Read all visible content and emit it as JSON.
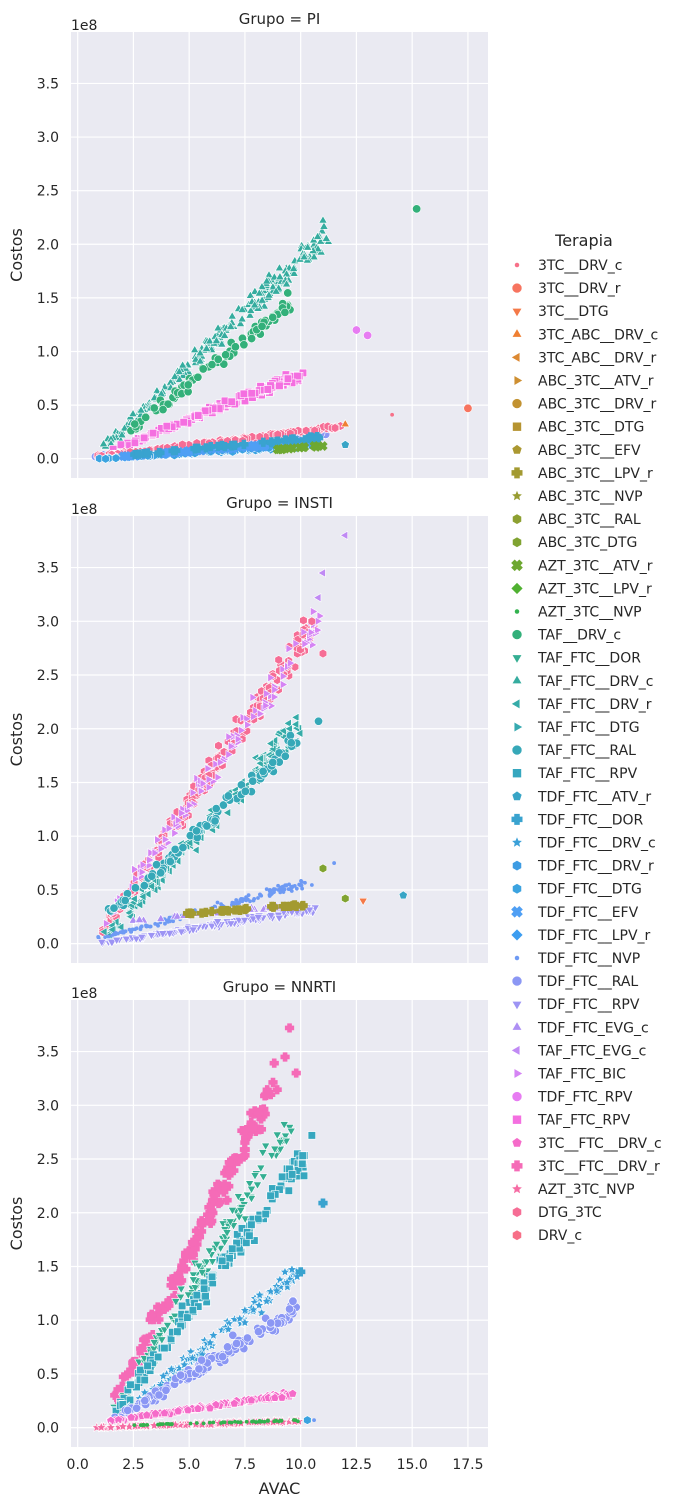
{
  "chart_data": {
    "type": "scatter",
    "x_label": "AVAC",
    "y_label": "Costos",
    "offset_text": "1e8",
    "xlim": [
      -0.3,
      18.4
    ],
    "ylim": [
      -0.18,
      3.98
    ],
    "x_ticks": [
      0.0,
      2.5,
      5.0,
      7.5,
      10.0,
      12.5,
      15.0,
      17.5
    ],
    "x_tick_labels": [
      "0.0",
      "2.5",
      "5.0",
      "7.5",
      "10.0",
      "12.5",
      "15.0",
      "17.5"
    ],
    "y_ticks": [
      0.0,
      0.5,
      1.0,
      1.5,
      2.0,
      2.5,
      3.0,
      3.5
    ],
    "y_tick_labels": [
      "0.0",
      "0.5",
      "1.0",
      "1.5",
      "2.0",
      "2.5",
      "3.0",
      "3.5"
    ],
    "grid": true,
    "legend_placement": "right",
    "legend_title": "Terapia",
    "panels": [
      {
        "title": "Grupo = PI",
        "clouds": [
          {
            "series": 18,
            "x0": 1.3,
            "x1": 11.2,
            "y0": 0.12,
            "y1": 2.1,
            "n": 230,
            "spread": 0.11
          },
          {
            "series": 16,
            "x0": 2.2,
            "x1": 9.6,
            "y0": 0.25,
            "y1": 1.45,
            "n": 90,
            "spread": 0.08
          },
          {
            "series": 37,
            "x0": 1.5,
            "x1": 10.0,
            "y0": 0.08,
            "y1": 0.78,
            "n": 150,
            "spread": 0.05
          },
          {
            "series": 31,
            "x0": 0.8,
            "x1": 11.0,
            "y0": 0.02,
            "y1": 0.24,
            "n": 140,
            "spread": 0.025
          },
          {
            "series": 41,
            "x0": 0.8,
            "x1": 11.8,
            "y0": 0.02,
            "y1": 0.3,
            "n": 110,
            "spread": 0.02
          },
          {
            "series": 27,
            "x0": 1.0,
            "x1": 10.5,
            "y0": 0.0,
            "y1": 0.12,
            "n": 90,
            "spread": 0.015
          },
          {
            "series": 28,
            "x0": 2.0,
            "x1": 10.5,
            "y0": 0.02,
            "y1": 0.16,
            "n": 60,
            "spread": 0.015
          },
          {
            "series": 24,
            "x0": 2.0,
            "x1": 11.0,
            "y0": 0.03,
            "y1": 0.2,
            "n": 40,
            "spread": 0.015
          },
          {
            "series": 13,
            "x0": 8.5,
            "x1": 11.0,
            "y0": 0.08,
            "y1": 0.12,
            "n": 12,
            "spread": 0.01
          }
        ],
        "points": [
          {
            "series": 16,
            "x": 15.2,
            "y": 2.33
          },
          {
            "series": 36,
            "x": 12.5,
            "y": 1.2
          },
          {
            "series": 36,
            "x": 13.0,
            "y": 1.15
          },
          {
            "series": 1,
            "x": 17.5,
            "y": 0.47
          },
          {
            "series": 0,
            "x": 14.1,
            "y": 0.41
          },
          {
            "series": 3,
            "x": 12.0,
            "y": 0.32
          },
          {
            "series": 23,
            "x": 12.0,
            "y": 0.13
          },
          {
            "series": 18,
            "x": 11.0,
            "y": 2.22
          }
        ]
      },
      {
        "title": "Grupo = INSTI",
        "clouds": [
          {
            "series": 41,
            "x0": 1.0,
            "x1": 10.5,
            "y0": 0.1,
            "y1": 2.95,
            "n": 220,
            "spread": 0.15
          },
          {
            "series": 35,
            "x0": 1.2,
            "x1": 10.8,
            "y0": 0.2,
            "y1": 3.0,
            "n": 110,
            "spread": 0.18
          },
          {
            "series": 19,
            "x0": 1.2,
            "x1": 10.0,
            "y0": 0.05,
            "y1": 2.05,
            "n": 160,
            "spread": 0.15
          },
          {
            "series": 21,
            "x0": 1.6,
            "x1": 9.8,
            "y0": 0.3,
            "y1": 1.9,
            "n": 90,
            "spread": 0.1
          },
          {
            "series": 30,
            "x0": 1.0,
            "x1": 10.5,
            "y0": 0.05,
            "y1": 0.58,
            "n": 160,
            "spread": 0.05
          },
          {
            "series": 32,
            "x0": 0.8,
            "x1": 10.5,
            "y0": 0.0,
            "y1": 0.32,
            "n": 150,
            "spread": 0.03
          },
          {
            "series": 33,
            "x0": 2.0,
            "x1": 10.0,
            "y0": 0.2,
            "y1": 0.36,
            "n": 40,
            "spread": 0.02
          },
          {
            "series": 9,
            "x0": 5.0,
            "x1": 10.0,
            "y0": 0.28,
            "y1": 0.36,
            "n": 30,
            "spread": 0.02
          }
        ],
        "points": [
          {
            "series": 34,
            "x": 12.0,
            "y": 3.8
          },
          {
            "series": 34,
            "x": 11.0,
            "y": 3.45
          },
          {
            "series": 34,
            "x": 10.8,
            "y": 3.22
          },
          {
            "series": 41,
            "x": 10.5,
            "y": 3.0
          },
          {
            "series": 41,
            "x": 11.0,
            "y": 2.7
          },
          {
            "series": 30,
            "x": 11.5,
            "y": 0.75
          },
          {
            "series": 12,
            "x": 11.0,
            "y": 0.7
          },
          {
            "series": 12,
            "x": 12.0,
            "y": 0.42
          },
          {
            "series": 2,
            "x": 12.8,
            "y": 0.4
          },
          {
            "series": 23,
            "x": 14.6,
            "y": 0.45
          },
          {
            "series": 21,
            "x": 10.8,
            "y": 2.07
          }
        ]
      },
      {
        "title": "Grupo = NNRTI",
        "clouds": [
          {
            "series": 39,
            "x0": 1.5,
            "x1": 9.0,
            "y0": 0.15,
            "y1": 3.3,
            "n": 170,
            "spread": 0.18
          },
          {
            "series": 17,
            "x0": 1.5,
            "x1": 9.5,
            "y0": 0.1,
            "y1": 2.8,
            "n": 130,
            "spread": 0.16
          },
          {
            "series": 22,
            "x0": 1.5,
            "x1": 10.2,
            "y0": 0.1,
            "y1": 2.55,
            "n": 150,
            "spread": 0.16
          },
          {
            "series": 25,
            "x0": 2.0,
            "x1": 10.0,
            "y0": 0.1,
            "y1": 1.5,
            "n": 110,
            "spread": 0.1
          },
          {
            "series": 31,
            "x0": 1.5,
            "x1": 9.8,
            "y0": 0.05,
            "y1": 1.1,
            "n": 140,
            "spread": 0.1
          },
          {
            "series": 38,
            "x0": 1.5,
            "x1": 9.5,
            "y0": 0.06,
            "y1": 0.31,
            "n": 150,
            "spread": 0.02
          },
          {
            "series": 40,
            "x0": 0.8,
            "x1": 10.0,
            "y0": 0.0,
            "y1": 0.06,
            "n": 130,
            "spread": 0.01
          },
          {
            "series": 15,
            "x0": 2.0,
            "x1": 10.0,
            "y0": 0.02,
            "y1": 0.07,
            "n": 50,
            "spread": 0.01
          }
        ],
        "points": [
          {
            "series": 39,
            "x": 9.5,
            "y": 3.72
          },
          {
            "series": 39,
            "x": 9.3,
            "y": 3.45
          },
          {
            "series": 39,
            "x": 9.8,
            "y": 3.3
          },
          {
            "series": 22,
            "x": 10.5,
            "y": 2.72
          },
          {
            "series": 24,
            "x": 11.0,
            "y": 2.09
          },
          {
            "series": 24,
            "x": 10.0,
            "y": 1.45
          },
          {
            "series": 27,
            "x": 10.3,
            "y": 0.07
          },
          {
            "series": 30,
            "x": 10.6,
            "y": 0.07
          }
        ]
      }
    ],
    "series": [
      {
        "name": "3TC__DRV_c",
        "color": "#f77189",
        "marker": "point"
      },
      {
        "name": "3TC__DRV_r",
        "color": "#f7745f",
        "marker": "circle"
      },
      {
        "name": "3TC__DTG",
        "color": "#f47948",
        "marker": "tri-down"
      },
      {
        "name": "3TC_ABC__DRV_c",
        "color": "#ef7f32",
        "marker": "tri-up"
      },
      {
        "name": "3TC_ABC__DRV_r",
        "color": "#dc8932",
        "marker": "tri-left"
      },
      {
        "name": "ABC_3TC__ATV_r",
        "color": "#ce8f31",
        "marker": "tri-right"
      },
      {
        "name": "ABC_3TC__DRV_r",
        "color": "#c29231",
        "marker": "circle"
      },
      {
        "name": "ABC_3TC__DTG",
        "color": "#b69431",
        "marker": "square"
      },
      {
        "name": "ABC_3TC__EFV",
        "color": "#ab9831",
        "marker": "pentagon"
      },
      {
        "name": "ABC_3TC__LPV_r",
        "color": "#a39a31",
        "marker": "plus"
      },
      {
        "name": "ABC_3TC__NVP",
        "color": "#989c31",
        "marker": "star"
      },
      {
        "name": "ABC_3TC__RAL",
        "color": "#8da031",
        "marker": "hexagon"
      },
      {
        "name": "ABC_3TC_DTG",
        "color": "#80a331",
        "marker": "hexagon"
      },
      {
        "name": "AZT_3TC__ATV_r",
        "color": "#6ea831",
        "marker": "x"
      },
      {
        "name": "AZT_3TC__LPV_r",
        "color": "#50b131",
        "marker": "diamond"
      },
      {
        "name": "AZT_3TC__NVP",
        "color": "#32b24e",
        "marker": "point"
      },
      {
        "name": "TAF__DRV_c",
        "color": "#33b07a",
        "marker": "circle"
      },
      {
        "name": "TAF_FTC__DOR",
        "color": "#34ae92",
        "marker": "tri-down"
      },
      {
        "name": "TAF_FTC__DRV_c",
        "color": "#35ac9f",
        "marker": "tri-up"
      },
      {
        "name": "TAF_FTC__DRV_r",
        "color": "#35aba8",
        "marker": "tri-left"
      },
      {
        "name": "TAF_FTC__DTG",
        "color": "#36aab0",
        "marker": "tri-right"
      },
      {
        "name": "TAF_FTC__RAL",
        "color": "#36a8b8",
        "marker": "circle"
      },
      {
        "name": "TAF_FTC__RPV",
        "color": "#36a7bf",
        "marker": "square"
      },
      {
        "name": "TDF_FTC__ATV_r",
        "color": "#38a5c6",
        "marker": "pentagon"
      },
      {
        "name": "TDF_FTC__DOR",
        "color": "#39a3cf",
        "marker": "plus"
      },
      {
        "name": "TDF_FTC__DRV_c",
        "color": "#3ba0d8",
        "marker": "star"
      },
      {
        "name": "TDF_FTC__DRV_r",
        "color": "#3e9ce3",
        "marker": "hexagon"
      },
      {
        "name": "TDF_FTC__DTG",
        "color": "#3ba3e0",
        "marker": "hexagon"
      },
      {
        "name": "TDF_FTC__EFV",
        "color": "#4f9ff4",
        "marker": "x"
      },
      {
        "name": "TDF_FTC__LPV_r",
        "color": "#3c9df0",
        "marker": "diamond"
      },
      {
        "name": "TDF_FTC__NVP",
        "color": "#6e9af4",
        "marker": "point"
      },
      {
        "name": "TDF_FTC__RAL",
        "color": "#8b97f4",
        "marker": "circle"
      },
      {
        "name": "TDF_FTC__RPV",
        "color": "#9d94f4",
        "marker": "tri-down"
      },
      {
        "name": "TDF_FTC_EVG_c",
        "color": "#ae8ff4",
        "marker": "tri-up"
      },
      {
        "name": "TAF_FTC_EVG_c",
        "color": "#c08af4",
        "marker": "tri-left"
      },
      {
        "name": "TAF_FTC_BIC",
        "color": "#d584f4",
        "marker": "tri-right"
      },
      {
        "name": "TDF_FTC_RPV",
        "color": "#e77cf2",
        "marker": "circle"
      },
      {
        "name": "TAF_FTC_RPV",
        "color": "#f46fe0",
        "marker": "square"
      },
      {
        "name": "3TC__FTC__DRV_c",
        "color": "#f56bc9",
        "marker": "pentagon"
      },
      {
        "name": "3TC__FTC__DRV_r",
        "color": "#f56bb7",
        "marker": "plus"
      },
      {
        "name": "AZT_3TC_NVP",
        "color": "#f66ca4",
        "marker": "star"
      },
      {
        "name": "DTG_3TC",
        "color": "#f66d95",
        "marker": "hexagon"
      },
      {
        "name": "DRV_c",
        "color": "#f76f87",
        "marker": "hexagon"
      }
    ]
  }
}
